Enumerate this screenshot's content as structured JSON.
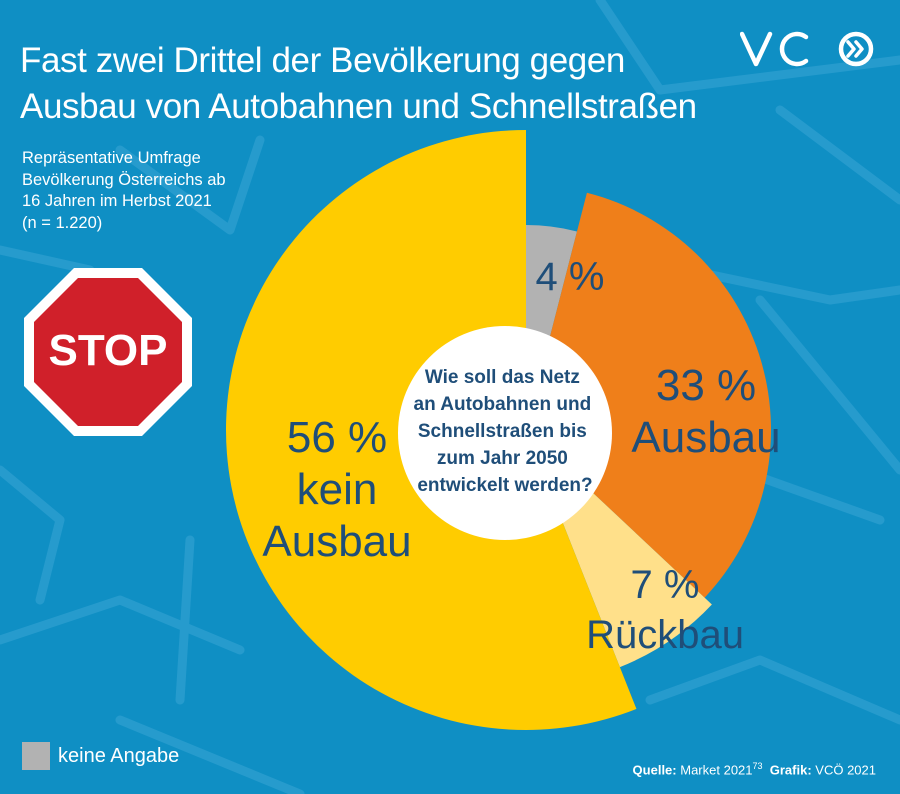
{
  "title_lines": [
    "Fast zwei Drittel der Bevölkerung gegen",
    "Ausbau von Autobahnen und Schnellstraßen"
  ],
  "subtitle_lines": [
    "Repräsentative Umfrage",
    "Bevölkerung Österreichs ab",
    "16 Jahren im Herbst 2021",
    "(n = 1.220)"
  ],
  "logo_text": "VCÖ",
  "stop_sign_text": "STOP",
  "center_question_lines": [
    "Wie soll das Netz",
    "an Autobahnen und",
    "Schnellstraßen bis",
    "zum Jahr 2050",
    "entwickelt werden?"
  ],
  "legend": {
    "label": "keine Angabe",
    "color": "#b2b2b2"
  },
  "source": {
    "label_source": "Quelle:",
    "source_value": "Market 2021",
    "source_sup": "73",
    "label_graphic": "Grafik:",
    "graphic_value": "VCÖ 2021"
  },
  "colors": {
    "background": "#0f8fc4",
    "no_expansion": "#ffcc00",
    "expansion": "#ef7f1a",
    "dismantling": "#ffe08a",
    "no_answer": "#b2b2b2",
    "label_text": "#1f4e79",
    "stop_red": "#d0202a"
  },
  "chart_data": {
    "type": "pie",
    "variant": "exploded radial (segments with different radii) around a central text circle",
    "slices": [
      {
        "key": "no_answer",
        "value": 4,
        "label_lines": [
          "4 %"
        ],
        "color": "#b2b2b2"
      },
      {
        "key": "expansion",
        "value": 33,
        "label_lines": [
          "33 %",
          "Ausbau"
        ],
        "color": "#ef7f1a"
      },
      {
        "key": "dismantling",
        "value": 7,
        "label_lines": [
          "7 %",
          "Rückbau"
        ],
        "color": "#ffe08a"
      },
      {
        "key": "no_expansion",
        "value": 56,
        "label_lines": [
          "56 %",
          "kein",
          "Ausbau"
        ],
        "color": "#ffcc00"
      }
    ]
  }
}
